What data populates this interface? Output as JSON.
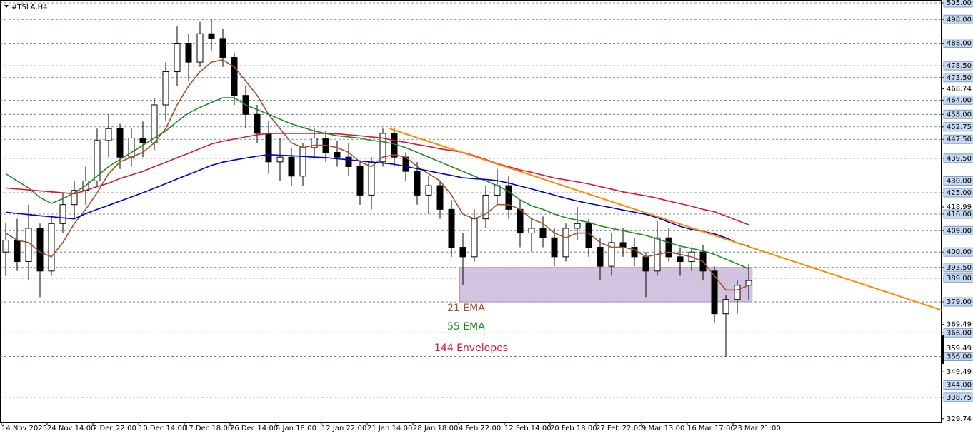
{
  "chart_data": {
    "type": "candlestick",
    "title": "#TSLA,H4",
    "x": [
      "14 Nov 2025",
      null,
      null,
      null,
      "24 Nov 14:00",
      null,
      null,
      null,
      "2 Dec 22:00",
      null,
      null,
      null,
      "10 Dec 14:00",
      null,
      null,
      null,
      "17 Dec 18:00",
      null,
      null,
      null,
      "26 Dec 14:00",
      null,
      null,
      null,
      "5 Jan 18:00",
      null,
      null,
      null,
      "12 Jan 22:00",
      null,
      null,
      null,
      "21 Jan 14:00",
      null,
      null,
      null,
      "28 Jan 18:00",
      null,
      null,
      null,
      "4 Feb 22:00",
      null,
      null,
      null,
      "12 Feb 14:00",
      null,
      null,
      null,
      "20 Feb 18:00",
      null,
      null,
      null,
      "27 Feb 22:00",
      null,
      null,
      null,
      "9 Mar 13:00",
      null,
      null,
      null,
      "16 Mar 17:00",
      null,
      null,
      null,
      "23 Mar 21:00",
      null
    ],
    "open": [
      400,
      405,
      396,
      410,
      392,
      412,
      420,
      426,
      430,
      447,
      452,
      440,
      448,
      446,
      462,
      476,
      488,
      480,
      492,
      490,
      482,
      466,
      458,
      450,
      438,
      440,
      432,
      444,
      448,
      442,
      440,
      436,
      424,
      438,
      450,
      440,
      434,
      424,
      428,
      418,
      402,
      398,
      414,
      424,
      428,
      418,
      408,
      410,
      406,
      398,
      410,
      412,
      402,
      394,
      404,
      402,
      398,
      392,
      406,
      398,
      396,
      400,
      392,
      374,
      380,
      386
    ],
    "high": [
      412,
      414,
      420,
      412,
      415,
      425,
      430,
      436,
      452,
      458,
      454,
      452,
      455,
      465,
      480,
      495,
      492,
      497,
      498,
      494,
      484,
      470,
      462,
      455,
      448,
      444,
      446,
      452,
      451,
      447,
      446,
      438,
      440,
      452,
      452,
      442,
      438,
      432,
      430,
      422,
      408,
      418,
      428,
      435,
      432,
      422,
      414,
      415,
      410,
      412,
      419,
      414,
      406,
      408,
      410,
      406,
      400,
      413,
      410,
      402,
      402,
      403,
      394,
      382,
      388,
      395
    ],
    "low": [
      390,
      392,
      388,
      381,
      390,
      408,
      414,
      420,
      428,
      440,
      435,
      436,
      440,
      443,
      455,
      470,
      472,
      478,
      485,
      478,
      462,
      452,
      446,
      433,
      430,
      428,
      428,
      440,
      438,
      436,
      432,
      420,
      418,
      436,
      436,
      430,
      420,
      416,
      414,
      398,
      386,
      396,
      410,
      420,
      414,
      402,
      400,
      402,
      394,
      396,
      405,
      398,
      388,
      390,
      398,
      394,
      381,
      390,
      396,
      390,
      392,
      388,
      370,
      356,
      374,
      380
    ],
    "close": [
      405,
      396,
      410,
      392,
      412,
      420,
      426,
      430,
      447,
      452,
      440,
      448,
      446,
      462,
      476,
      488,
      480,
      492,
      490,
      482,
      466,
      458,
      450,
      438,
      440,
      432,
      444,
      448,
      442,
      440,
      436,
      424,
      438,
      450,
      440,
      434,
      424,
      428,
      418,
      402,
      398,
      414,
      424,
      428,
      418,
      408,
      410,
      406,
      398,
      410,
      412,
      402,
      394,
      404,
      402,
      398,
      392,
      406,
      398,
      396,
      400,
      392,
      374,
      380,
      386,
      388
    ],
    "lines": [
      {
        "name": "21 EMA",
        "color": "#a0522d",
        "values": [
          408,
          405,
          404,
          400,
          398,
          404,
          412,
          418,
          425,
          433,
          438,
          440,
          442,
          446,
          452,
          462,
          470,
          476,
          480,
          481,
          478,
          472,
          466,
          458,
          452,
          446,
          444,
          445,
          445,
          444,
          442,
          438,
          436,
          440,
          441,
          440,
          436,
          433,
          430,
          424,
          416,
          414,
          416,
          420,
          420,
          418,
          414,
          412,
          408,
          406,
          408,
          408,
          404,
          402,
          402,
          401,
          398,
          399,
          400,
          399,
          398,
          396,
          390,
          384,
          384,
          386
        ]
      },
      {
        "name": "55 EMA",
        "color": "#228b22",
        "values": [
          433,
          430,
          427,
          423,
          420.5,
          422.5,
          425,
          428,
          432,
          436,
          439,
          442,
          445,
          448,
          451,
          455,
          458.5,
          461,
          463,
          465,
          465,
          462,
          460,
          458,
          456,
          454,
          452.5,
          451,
          450,
          449,
          448.5,
          448,
          447,
          446.5,
          445.5,
          444,
          442,
          440,
          438,
          436,
          434,
          432,
          430,
          428,
          425.5,
          422,
          419.5,
          418,
          416,
          414.5,
          413.5,
          412.5,
          411,
          410,
          409,
          408,
          407,
          405.5,
          404,
          402.5,
          401.5,
          400.5,
          399,
          397,
          395,
          393
        ]
      },
      {
        "name": "144 Envelopes",
        "color": "#dc143c",
        "values": [
          427,
          426.6,
          426.2,
          425.8,
          425.4,
          425,
          424.6,
          426,
          427.6,
          429,
          431,
          432.5,
          434,
          436,
          437.8,
          439.8,
          441.6,
          443.6,
          445.5,
          446.7,
          447.6,
          448.5,
          449.4,
          450,
          450,
          450,
          450,
          450,
          450,
          449.8,
          449.4,
          449,
          448.5,
          448,
          447,
          446.2,
          445.3,
          444.5,
          443.5,
          442.8,
          442,
          440.6,
          439,
          437.3,
          436,
          434.6,
          433.6,
          432.4,
          431.2,
          430.4,
          429.6,
          428.7,
          427.6,
          426.5,
          425.4,
          424.5,
          423.7,
          422.7,
          421.5,
          420.4,
          419.3,
          418,
          417,
          415.2,
          413.3,
          411.5
        ]
      },
      {
        "color": "#0000cd",
        "values": [
          416.8,
          416.3,
          415.8,
          415.3,
          414.9,
          414.4,
          414,
          416.2,
          418,
          419.7,
          421.5,
          423.2,
          425,
          426.9,
          428.8,
          430.8,
          432.7,
          434.6,
          436.5,
          437.9,
          438.8,
          439.6,
          440.4,
          441,
          440.8,
          440.6,
          440.3,
          440,
          439.8,
          439.3,
          438.9,
          438.4,
          437.9,
          437.5,
          437,
          436.1,
          435.1,
          434.2,
          433.2,
          432.3,
          431.3,
          430.9,
          430.6,
          430.1,
          429.1,
          427.8,
          426.6,
          425.3,
          424,
          422.7,
          421.5,
          420.5,
          419.6,
          418.7,
          417.7,
          416.8,
          415.9,
          414.5,
          412.6,
          410.8,
          409.5,
          408.7,
          407.7,
          406,
          403.8,
          402.5
        ]
      }
    ],
    "trendline": {
      "color": "#ff8c00",
      "x": [
        33.6,
        81.9
      ],
      "values": [
        452,
        375.5
      ]
    },
    "zone": {
      "color": "#c8b4d8",
      "x": [
        39.7,
        65.3
      ],
      "values": [
        393.5,
        379
      ]
    },
    "ylim": [
      328.2,
      506.2
    ],
    "yticks": [
      {
        "value": 505,
        "label": "505.00",
        "highlight": true
      },
      {
        "value": 498,
        "label": "498.00",
        "highlight": true
      },
      {
        "value": 488,
        "label": "488.00",
        "highlight": true
      },
      {
        "value": 478.5,
        "label": "478.50",
        "highlight": true
      },
      {
        "value": 473.5,
        "label": "473.50",
        "highlight": true
      },
      {
        "value": 468.74,
        "label": "468.74"
      },
      {
        "value": 464,
        "label": "464.00",
        "highlight": true
      },
      {
        "value": 458,
        "label": "458.00",
        "highlight": true
      },
      {
        "value": 452.75,
        "label": "452.75",
        "highlight": true
      },
      {
        "value": 447.5,
        "label": "447.50",
        "highlight": true
      },
      {
        "value": 439.5,
        "label": "439.50",
        "highlight": true
      },
      {
        "value": 430,
        "label": "430.00",
        "highlight": true
      },
      {
        "value": 425,
        "label": "425.00",
        "highlight": true
      },
      {
        "value": 418.99,
        "label": "418.99"
      },
      {
        "value": 416,
        "label": "416.00",
        "highlight": true
      },
      {
        "value": 409,
        "label": "409.00",
        "highlight": true
      },
      {
        "value": 400,
        "label": "400.00",
        "highlight": true
      },
      {
        "value": 393.5,
        "label": "393.50",
        "highlight": true
      },
      {
        "value": 389,
        "label": "389.00",
        "highlight": true
      },
      {
        "value": 379,
        "label": "379.00",
        "highlight": true
      },
      {
        "value": 369.49,
        "label": "369.49"
      },
      {
        "value": 366,
        "label": "366.00",
        "highlight": true
      },
      {
        "value": 359.49,
        "label": "359.49"
      },
      {
        "value": 356,
        "label": "356.00",
        "highlight": true
      },
      {
        "value": 349.49,
        "label": "349.49"
      },
      {
        "value": 344,
        "label": "344.00",
        "highlight": true
      },
      {
        "value": 338.75,
        "label": "338.75",
        "highlight": true
      },
      {
        "value": 329.74,
        "label": "329.74"
      }
    ]
  }
}
